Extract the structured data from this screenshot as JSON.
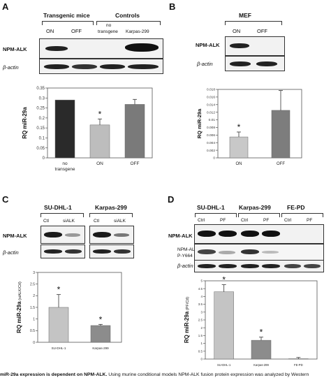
{
  "panels": {
    "A": {
      "letter": "A",
      "group_left": "Transgenic mice",
      "group_right": "Controls",
      "lanes": [
        "ON",
        "OFF",
        "no transgene",
        "Karpas-299"
      ],
      "lane_no_transgene_1": "no",
      "lane_no_transgene_2": "transgene",
      "blot_labels": [
        "NPM-ALK",
        "β-actin"
      ],
      "ylabel": "RQ miR-29a",
      "yticks": [
        "0",
        "0.05",
        "0.1",
        "0.15",
        "0.2",
        "0.25",
        "0.3",
        "0.35"
      ],
      "xcats": [
        "no transgene",
        "ON",
        "OFF"
      ],
      "xcat_no_transgene_1": "no",
      "xcat_no_transgene_2": "transgene",
      "star": "*"
    },
    "B": {
      "letter": "B",
      "header": "MEF",
      "lanes": [
        "ON",
        "OFF"
      ],
      "blot_labels": [
        "NPM-ALK",
        "β-actin"
      ],
      "ylabel": "RQ miR-29a",
      "yticks": [
        "0",
        "0.002",
        "0.004",
        "0.006",
        "0.008",
        "0.01",
        "0.012",
        "0.014",
        "0.016",
        "0.018"
      ],
      "xcats": [
        "ON",
        "OFF"
      ],
      "star": "*"
    },
    "C": {
      "letter": "C",
      "group_left": "SU-DHL-1",
      "group_right": "Karpas-299",
      "lanes": [
        "Ctl",
        "siALK",
        "Ctl",
        "siALK"
      ],
      "blot_labels": [
        "NPM-ALK",
        "β-actin"
      ],
      "ylabel": "RQ miR-29a",
      "ylabel_sub": "(siALK/Ctl)",
      "yticks": [
        "0",
        "0.5",
        "1",
        "1.5",
        "2",
        "2.5",
        "3"
      ],
      "xcats": [
        "SU-DHL-1",
        "Karpas-299"
      ],
      "star": "*"
    },
    "D": {
      "letter": "D",
      "groups": [
        "SU-DHL-1",
        "Karpas-299",
        "FE-PD"
      ],
      "lanes": [
        "Ctrl",
        "PF",
        "Ctrl",
        "PF",
        "Ctrl",
        "PF"
      ],
      "blot_labels": [
        "NPM-ALK",
        "NPM-ALK",
        "P-Y664",
        "β-actin"
      ],
      "ylabel": "RQ miR-29a",
      "ylabel_sub": "(PF/Ctl)",
      "yticks": [
        "0",
        "0.5",
        "1",
        "1.5",
        "2",
        "2.5",
        "3",
        "3.5",
        "4",
        "4.5",
        "5"
      ],
      "xcats": [
        "SU-DHL-1",
        "Karpas-299",
        "FE-PD"
      ],
      "star": "*"
    }
  },
  "caption": {
    "bold": "miR-29a expression is dependent on NPM-ALK.",
    "rest": " Using murine conditional models NPM-ALK fusion protein expression was analyzed by Western"
  },
  "chart_data": [
    {
      "type": "bar",
      "panel": "A",
      "categories": [
        "no transgene",
        "ON",
        "OFF"
      ],
      "values": [
        0.29,
        0.165,
        0.268
      ],
      "errors": [
        0,
        0.03,
        0.025
      ],
      "colors": [
        "#2a2a2a",
        "#bdbdbd",
        "#7a7a7a"
      ],
      "ylabel": "RQ miR-29a",
      "ylim": [
        0,
        0.35
      ],
      "significance": [
        "",
        "*",
        ""
      ]
    },
    {
      "type": "bar",
      "panel": "B",
      "categories": [
        "ON",
        "OFF"
      ],
      "values": [
        0.0055,
        0.0125
      ],
      "errors": [
        0.0013,
        0.0052
      ],
      "colors": [
        "#c8c8c8",
        "#7d7d7d"
      ],
      "ylabel": "RQ miR-29a",
      "ylim": [
        0,
        0.018
      ],
      "significance": [
        "*",
        ""
      ]
    },
    {
      "type": "bar",
      "panel": "C",
      "categories": [
        "SU-DHL-1",
        "Karpas-299"
      ],
      "values": [
        1.5,
        0.72
      ],
      "errors": [
        0.55,
        0.05
      ],
      "colors": [
        "#c4c4c4",
        "#8c8c8c"
      ],
      "ylabel": "RQ miR-29a (siALK/Ctl)",
      "ylim": [
        0,
        3
      ],
      "significance": [
        "*",
        "*"
      ]
    },
    {
      "type": "bar",
      "panel": "D",
      "categories": [
        "SU-DHL-1",
        "Karpas-299",
        "FE-PD"
      ],
      "values": [
        4.3,
        1.2,
        0.02
      ],
      "errors": [
        0.45,
        0.2,
        0.08
      ],
      "colors": [
        "#c4c4c4",
        "#8c8c8c",
        "#dddddd"
      ],
      "ylabel": "RQ miR-29a (PF/Ctl)",
      "ylim": [
        0,
        5
      ],
      "significance": [
        "*",
        "*",
        ""
      ]
    }
  ]
}
